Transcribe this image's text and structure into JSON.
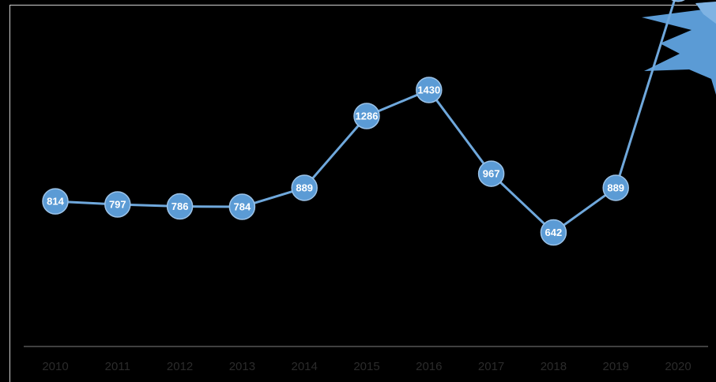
{
  "chart_data": {
    "type": "line",
    "title": "",
    "xlabel": "",
    "ylabel": "",
    "categories": [
      "2010",
      "2011",
      "2012",
      "2013",
      "2014",
      "2015",
      "2016",
      "2017",
      "2018",
      "2019",
      "2020"
    ],
    "series": [
      {
        "values": [
          814,
          797,
          786,
          784,
          889,
          1286,
          1430,
          967,
          642,
          889,
          1990
        ],
        "data_labels": [
          "814",
          "797",
          "786",
          "784",
          "889",
          "1286",
          "1430",
          "967",
          "642",
          "889",
          ""
        ]
      }
    ],
    "ylim": [
      0,
      2200
    ],
    "grid": false,
    "legend": "none",
    "colors": {
      "background": "#000000",
      "line": "#6fa8dc",
      "marker": "#5b9bd5",
      "marker_stroke": "#9cc3e8",
      "data_label": "#ffffff",
      "axis": "#404040",
      "tick_label": "#2b2b2b",
      "frame": "#cfcfcf",
      "decoration": "#5b9bd5"
    },
    "decoration": "starburst-top-right"
  }
}
